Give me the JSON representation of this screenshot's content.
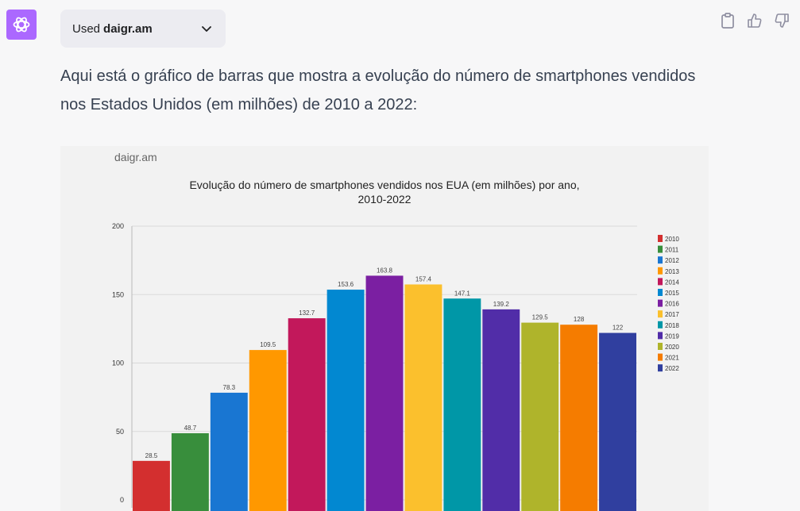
{
  "plugin": {
    "used_label": "Used",
    "plugin_name": "daigr.am"
  },
  "message": {
    "text": "Aqui está o gráfico de barras que mostra a evolução do número de smartphones vendidos nos Estados Unidos (em milhões) de 2010 a 2022:"
  },
  "icons": {
    "avatar": "openai-logo-icon",
    "chevron": "chevron-down-icon",
    "copy": "clipboard-icon",
    "like": "thumbs-up-icon",
    "dislike": "thumbs-down-icon"
  },
  "colors": {
    "avatar_bg": "#ab68ff",
    "pill_bg": "#ececf1",
    "page_bg": "#f7f7f8"
  },
  "chart": {
    "brand": "daigr.am"
  },
  "chart_data": {
    "type": "bar",
    "title_line1": "Evolução do número de smartphones vendidos nos EUA (em milhões) por ano,",
    "title_line2": "2010-2022",
    "categories": [
      "2010",
      "2011",
      "2012",
      "2013",
      "2014",
      "2015",
      "2016",
      "2017",
      "2018",
      "2019",
      "2020",
      "2021",
      "2022"
    ],
    "values": [
      28.5,
      48.7,
      78.3,
      109.5,
      132.7,
      153.6,
      163.8,
      157.4,
      147.1,
      139.2,
      129.5,
      128,
      122
    ],
    "labels": [
      "28.5",
      "48.7",
      "78.3",
      "109.5",
      "132.7",
      "153.6",
      "163.8",
      "157.4",
      "147.1",
      "139.2",
      "129.5",
      "128",
      "122"
    ],
    "colors": [
      "#d32f2f",
      "#388e3c",
      "#1976d2",
      "#ff9800",
      "#c2185b",
      "#0288d1",
      "#7b1fa2",
      "#fbc02d",
      "#0097a7",
      "#512da8",
      "#afb42b",
      "#f57c00",
      "#303f9f"
    ],
    "yticks": [
      "0",
      "50",
      "100",
      "150",
      "200"
    ],
    "ylim": [
      0,
      200
    ],
    "grid": true,
    "legend": "right"
  }
}
